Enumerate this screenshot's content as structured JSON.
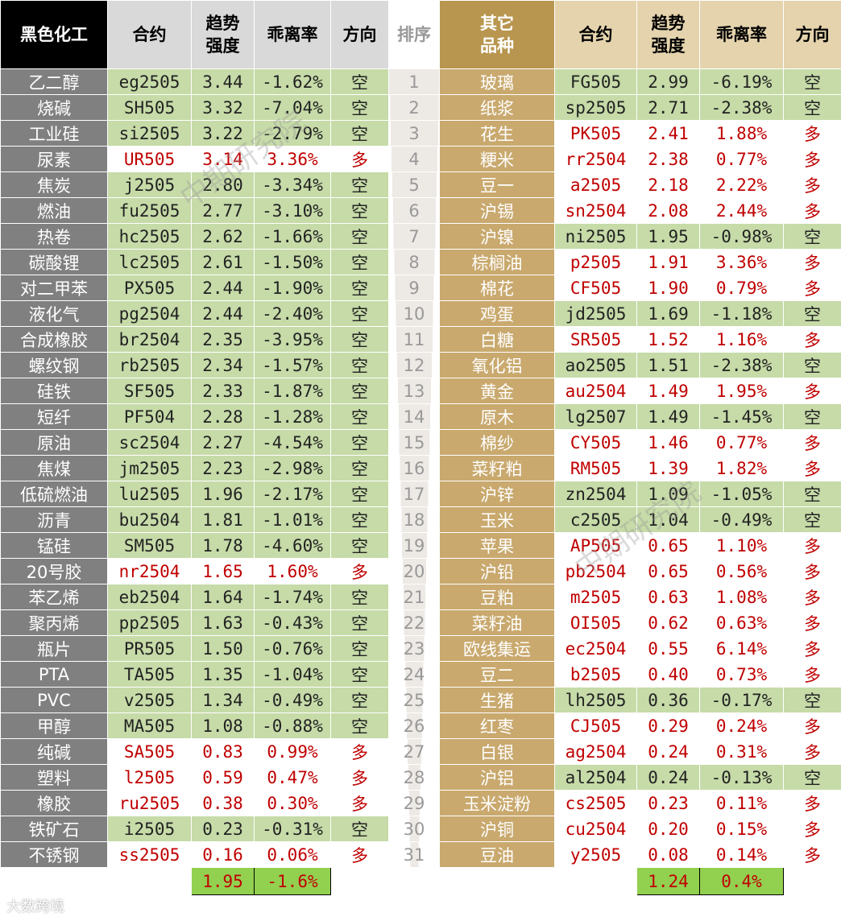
{
  "header": {
    "left": [
      "黑色化工",
      "合约",
      "趋势\n强度",
      "乖离率",
      "方向"
    ],
    "rank": "排序",
    "right": [
      "其它\n品种",
      "合约",
      "趋势\n强度",
      "乖离率",
      "方向"
    ]
  },
  "left": {
    "rows": [
      [
        "乙二醇",
        "eg2505",
        "3.44",
        "-1.62%",
        "空"
      ],
      [
        "烧碱",
        "SH505",
        "3.32",
        "-7.04%",
        "空"
      ],
      [
        "工业硅",
        "si2505",
        "3.22",
        "-2.79%",
        "空"
      ],
      [
        "尿素",
        "UR505",
        "3.14",
        "3.36%",
        "多"
      ],
      [
        "焦炭",
        "j2505",
        "2.80",
        "-3.34%",
        "空"
      ],
      [
        "燃油",
        "fu2505",
        "2.77",
        "-3.10%",
        "空"
      ],
      [
        "热卷",
        "hc2505",
        "2.62",
        "-1.66%",
        "空"
      ],
      [
        "碳酸锂",
        "lc2505",
        "2.61",
        "-1.50%",
        "空"
      ],
      [
        "对二甲苯",
        "PX505",
        "2.44",
        "-1.90%",
        "空"
      ],
      [
        "液化气",
        "pg2504",
        "2.44",
        "-2.40%",
        "空"
      ],
      [
        "合成橡胶",
        "br2504",
        "2.35",
        "-3.95%",
        "空"
      ],
      [
        "螺纹钢",
        "rb2505",
        "2.34",
        "-1.57%",
        "空"
      ],
      [
        "硅铁",
        "SF505",
        "2.33",
        "-1.87%",
        "空"
      ],
      [
        "短纤",
        "PF504",
        "2.28",
        "-1.28%",
        "空"
      ],
      [
        "原油",
        "sc2504",
        "2.27",
        "-4.54%",
        "空"
      ],
      [
        "焦煤",
        "jm2505",
        "2.23",
        "-2.98%",
        "空"
      ],
      [
        "低硫燃油",
        "lu2505",
        "1.96",
        "-2.17%",
        "空"
      ],
      [
        "沥青",
        "bu2504",
        "1.81",
        "-1.01%",
        "空"
      ],
      [
        "锰硅",
        "SM505",
        "1.78",
        "-4.60%",
        "空"
      ],
      [
        "20号胶",
        "nr2504",
        "1.65",
        "1.60%",
        "多"
      ],
      [
        "苯乙烯",
        "eb2504",
        "1.64",
        "-1.74%",
        "空"
      ],
      [
        "聚丙烯",
        "pp2505",
        "1.63",
        "-0.43%",
        "空"
      ],
      [
        "瓶片",
        "PR505",
        "1.50",
        "-0.76%",
        "空"
      ],
      [
        "PTA",
        "TA505",
        "1.35",
        "-1.04%",
        "空"
      ],
      [
        "PVC",
        "v2505",
        "1.34",
        "-0.49%",
        "空"
      ],
      [
        "甲醇",
        "MA505",
        "1.08",
        "-0.88%",
        "空"
      ],
      [
        "纯碱",
        "SA505",
        "0.83",
        "0.99%",
        "多"
      ],
      [
        "塑料",
        "l2505",
        "0.59",
        "0.47%",
        "多"
      ],
      [
        "橡胶",
        "ru2505",
        "0.38",
        "0.30%",
        "多"
      ],
      [
        "铁矿石",
        "i2505",
        "0.23",
        "-0.31%",
        "空"
      ],
      [
        "不锈钢",
        "ss2505",
        "0.16",
        "0.06%",
        "多"
      ]
    ],
    "footer": [
      "1.95",
      "-1.6%"
    ]
  },
  "ranks": [
    "1",
    "2",
    "3",
    "4",
    "5",
    "6",
    "7",
    "8",
    "9",
    "10",
    "11",
    "12",
    "13",
    "14",
    "15",
    "16",
    "17",
    "18",
    "19",
    "20",
    "21",
    "22",
    "23",
    "24",
    "25",
    "26",
    "27",
    "28",
    "29",
    "30",
    "31"
  ],
  "right": {
    "rows": [
      [
        "玻璃",
        "FG505",
        "2.99",
        "-6.19%",
        "空"
      ],
      [
        "纸浆",
        "sp2505",
        "2.71",
        "-2.38%",
        "空"
      ],
      [
        "花生",
        "PK505",
        "2.41",
        "1.88%",
        "多"
      ],
      [
        "粳米",
        "rr2504",
        "2.38",
        "0.77%",
        "多"
      ],
      [
        "豆一",
        "a2505",
        "2.18",
        "2.22%",
        "多"
      ],
      [
        "沪锡",
        "sn2504",
        "2.08",
        "2.44%",
        "多"
      ],
      [
        "沪镍",
        "ni2505",
        "1.95",
        "-0.98%",
        "空"
      ],
      [
        "棕榈油",
        "p2505",
        "1.91",
        "3.36%",
        "多"
      ],
      [
        "棉花",
        "CF505",
        "1.90",
        "0.79%",
        "多"
      ],
      [
        "鸡蛋",
        "jd2505",
        "1.69",
        "-1.18%",
        "空"
      ],
      [
        "白糖",
        "SR505",
        "1.52",
        "1.16%",
        "多"
      ],
      [
        "氧化铝",
        "ao2505",
        "1.51",
        "-2.38%",
        "空"
      ],
      [
        "黄金",
        "au2504",
        "1.49",
        "1.95%",
        "多"
      ],
      [
        "原木",
        "lg2507",
        "1.49",
        "-1.45%",
        "空"
      ],
      [
        "棉纱",
        "CY505",
        "1.46",
        "0.77%",
        "多"
      ],
      [
        "菜籽粕",
        "RM505",
        "1.39",
        "1.82%",
        "多"
      ],
      [
        "沪锌",
        "zn2504",
        "1.09",
        "-1.05%",
        "空"
      ],
      [
        "玉米",
        "c2505",
        "1.04",
        "-0.49%",
        "空"
      ],
      [
        "苹果",
        "AP505",
        "0.65",
        "1.10%",
        "多"
      ],
      [
        "沪铅",
        "pb2504",
        "0.65",
        "0.56%",
        "多"
      ],
      [
        "豆粕",
        "m2505",
        "0.63",
        "1.08%",
        "多"
      ],
      [
        "菜籽油",
        "OI505",
        "0.62",
        "0.63%",
        "多"
      ],
      [
        "欧线集运",
        "ec2504",
        "0.55",
        "6.14%",
        "多"
      ],
      [
        "豆二",
        "b2505",
        "0.40",
        "0.73%",
        "多"
      ],
      [
        "生猪",
        "lh2505",
        "0.36",
        "-0.17%",
        "空"
      ],
      [
        "红枣",
        "CJ505",
        "0.29",
        "0.24%",
        "多"
      ],
      [
        "白银",
        "ag2504",
        "0.24",
        "0.31%",
        "多"
      ],
      [
        "沪铝",
        "al2504",
        "0.24",
        "-0.13%",
        "空"
      ],
      [
        "玉米淀粉",
        "cs2505",
        "0.23",
        "0.11%",
        "多"
      ],
      [
        "沪铜",
        "cu2504",
        "0.20",
        "0.15%",
        "多"
      ],
      [
        "豆油",
        "y2505",
        "0.08",
        "0.14%",
        "多"
      ]
    ],
    "footer": [
      "1.24",
      "0.4%"
    ]
  },
  "watermark": "中期研究院",
  "logo": "大数跨境"
}
